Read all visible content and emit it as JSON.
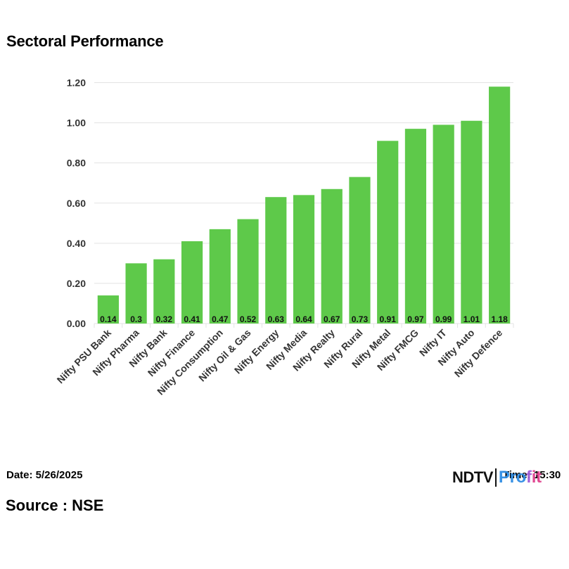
{
  "header": {
    "title": "Sectoral Performance"
  },
  "footer": {
    "date_label": "Date: 5/26/2025",
    "time_label": "Time: 15:30",
    "source_label": "Source : NSE"
  },
  "logo": {
    "brand": "NDTV",
    "product_a": "Pro",
    "product_b": "f",
    "product_c": "it"
  },
  "colors": {
    "bar": "#5ec94a",
    "grid": "#e3e3e3",
    "axis_text": "#333333"
  },
  "chart_data": {
    "type": "bar",
    "title": "Sectoral Performance",
    "xlabel": "",
    "ylabel": "",
    "categories": [
      "Nifty PSU Bank",
      "Nifty Pharma",
      "Nifty Bank",
      "Nifty Finance",
      "Nifty Consumption",
      "Nifty Oil & Gas",
      "Nifty Energy",
      "Nifty Media",
      "Nifty Realty",
      "Nifty Rural",
      "Nifty Metal",
      "Nifty FMCG",
      "Nifty IT",
      "Nifty Auto",
      "Nifty Defence"
    ],
    "values": [
      0.14,
      0.3,
      0.32,
      0.41,
      0.47,
      0.52,
      0.63,
      0.64,
      0.67,
      0.73,
      0.91,
      0.97,
      0.99,
      1.01,
      1.18
    ],
    "value_labels": [
      "0.14",
      "0.3",
      "0.32",
      "0.41",
      "0.47",
      "0.52",
      "0.63",
      "0.64",
      "0.67",
      "0.73",
      "0.91",
      "0.97",
      "0.99",
      "1.01",
      "1.18"
    ],
    "yticks": [
      "0.00",
      "0.20",
      "0.40",
      "0.60",
      "0.80",
      "1.00",
      "1.20"
    ],
    "ylim": [
      0,
      1.2
    ],
    "grid": true
  }
}
